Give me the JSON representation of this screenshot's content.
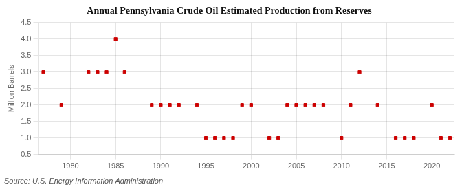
{
  "chart_data": {
    "type": "scatter",
    "title": "Annual Pennsylvania Crude Oil Estimated Production from Reserves",
    "ylabel": "Million Barrels",
    "annotation": "Source: U.S. Energy Information Administration",
    "color": "#cc0000",
    "marker": "square",
    "grid": true,
    "x": [
      1977,
      1979,
      1982,
      1983,
      1984,
      1985,
      1986,
      1989,
      1990,
      1991,
      1992,
      1994,
      1995,
      1996,
      1997,
      1998,
      1999,
      2000,
      2002,
      2003,
      2004,
      2005,
      2006,
      2007,
      2008,
      2010,
      2011,
      2012,
      2014,
      2016,
      2017,
      2018,
      2020,
      2021,
      2022
    ],
    "values": [
      3.0,
      2.0,
      3.0,
      3.0,
      3.0,
      4.0,
      3.0,
      2.0,
      2.0,
      2.0,
      2.0,
      2.0,
      1.0,
      1.0,
      1.0,
      1.0,
      2.0,
      2.0,
      1.0,
      1.0,
      2.0,
      2.0,
      2.0,
      2.0,
      2.0,
      1.0,
      2.0,
      3.0,
      2.0,
      1.0,
      1.0,
      1.0,
      2.0,
      1.0,
      1.0
    ],
    "xlim": [
      1976.5,
      2022.5
    ],
    "xticks": [
      1980,
      1985,
      1990,
      1995,
      2000,
      2005,
      2010,
      2015,
      2020
    ],
    "ylim": [
      0.5,
      4.5
    ],
    "yticks": [
      0.5,
      {
        "value": 1,
        "label": "1.0"
      },
      1.5,
      {
        "value": 2,
        "label": "2.0"
      },
      2.5,
      {
        "value": 3,
        "label": "3.0"
      },
      3.5,
      {
        "value": 4,
        "label": "4.0"
      },
      4.5
    ]
  }
}
